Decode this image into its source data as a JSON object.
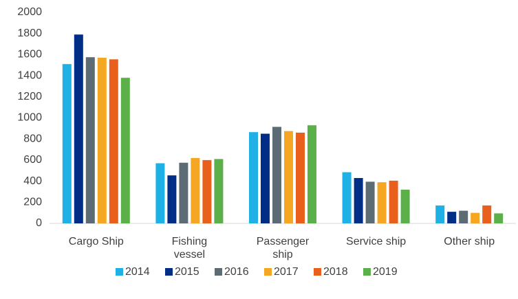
{
  "chart_data": {
    "type": "bar",
    "categories": [
      "Cargo Ship",
      "Fishing vessel",
      "Passenger ship",
      "Service ship",
      "Other ship"
    ],
    "series": [
      {
        "name": "2014",
        "color": "#1fb1e6",
        "values": [
          1510,
          570,
          865,
          485,
          170
        ]
      },
      {
        "name": "2015",
        "color": "#002d85",
        "values": [
          1790,
          455,
          850,
          430,
          110
        ]
      },
      {
        "name": "2016",
        "color": "#5d6b75",
        "values": [
          1575,
          575,
          915,
          395,
          120
        ]
      },
      {
        "name": "2017",
        "color": "#f5a623",
        "values": [
          1570,
          620,
          875,
          390,
          100
        ]
      },
      {
        "name": "2018",
        "color": "#e8601c",
        "values": [
          1555,
          600,
          860,
          405,
          170
        ]
      },
      {
        "name": "2019",
        "color": "#5bb04a",
        "values": [
          1380,
          610,
          930,
          320,
          95
        ]
      }
    ],
    "ylim": [
      0,
      2000
    ],
    "yticks": [
      0,
      200,
      400,
      600,
      800,
      1000,
      1200,
      1400,
      1600,
      1800,
      2000
    ],
    "grid": false,
    "legend": "bottom"
  }
}
